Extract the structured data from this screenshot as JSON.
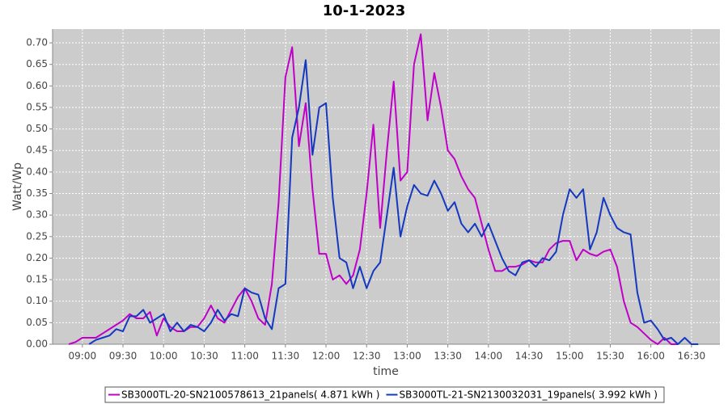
{
  "chart_data": {
    "type": "line",
    "title": "10-1-2023",
    "x_label": "time",
    "y_label": "Watt/Wp",
    "x": [
      "08:50",
      "08:55",
      "09:00",
      "09:05",
      "09:10",
      "09:15",
      "09:20",
      "09:25",
      "09:30",
      "09:35",
      "09:40",
      "09:45",
      "09:50",
      "09:55",
      "10:00",
      "10:05",
      "10:10",
      "10:15",
      "10:20",
      "10:25",
      "10:30",
      "10:35",
      "10:40",
      "10:45",
      "10:50",
      "10:55",
      "11:00",
      "11:05",
      "11:10",
      "11:15",
      "11:20",
      "11:25",
      "11:30",
      "11:35",
      "11:40",
      "11:45",
      "11:50",
      "11:55",
      "12:00",
      "12:05",
      "12:10",
      "12:15",
      "12:20",
      "12:25",
      "12:30",
      "12:35",
      "12:40",
      "12:45",
      "12:50",
      "12:55",
      "13:00",
      "13:05",
      "13:10",
      "13:15",
      "13:20",
      "13:25",
      "13:30",
      "13:35",
      "13:40",
      "13:45",
      "13:50",
      "13:55",
      "14:00",
      "14:05",
      "14:10",
      "14:15",
      "14:20",
      "14:25",
      "14:30",
      "14:35",
      "14:40",
      "14:45",
      "14:50",
      "14:55",
      "15:00",
      "15:05",
      "15:10",
      "15:15",
      "15:20",
      "15:25",
      "15:30",
      "15:35",
      "15:40",
      "15:45",
      "15:50",
      "15:55",
      "16:00",
      "16:05",
      "16:10",
      "16:15",
      "16:20",
      "16:25",
      "16:30",
      "16:35"
    ],
    "series": [
      {
        "name": "SB3000TL-20-SN2100578613_21panels( 4.871 kWh )",
        "color": "#c000c8",
        "values": [
          0,
          0.005,
          0.015,
          0.015,
          0.015,
          0.025,
          0.035,
          0.045,
          0.055,
          0.07,
          0.06,
          0.06,
          0.075,
          0.02,
          0.06,
          0.04,
          0.03,
          0.03,
          0.04,
          0.04,
          0.06,
          0.09,
          0.06,
          0.05,
          0.08,
          0.11,
          0.13,
          0.1,
          0.06,
          0.045,
          0.14,
          0.33,
          0.62,
          0.69,
          0.46,
          0.56,
          0.36,
          0.21,
          0.21,
          0.15,
          0.16,
          0.14,
          0.16,
          0.22,
          0.35,
          0.51,
          0.27,
          0.45,
          0.61,
          0.38,
          0.4,
          0.65,
          0.72,
          0.52,
          0.63,
          0.55,
          0.45,
          0.43,
          0.39,
          0.36,
          0.34,
          0.28,
          0.22,
          0.17,
          0.17,
          0.18,
          0.18,
          0.185,
          0.195,
          0.19,
          0.19,
          0.22,
          0.235,
          0.24,
          0.24,
          0.195,
          0.22,
          0.21,
          0.205,
          0.215,
          0.22,
          0.18,
          0.1,
          0.05,
          0.04,
          0.025,
          0.01,
          0,
          0.015,
          0,
          0,
          null,
          null,
          null
        ]
      },
      {
        "name": "SB3000TL-21-SN2130032031_19panels( 3.992 kWh )",
        "color": "#1438c0",
        "values": [
          null,
          null,
          null,
          0,
          0.01,
          0.015,
          0.02,
          0.035,
          0.03,
          0.065,
          0.065,
          0.08,
          0.05,
          0.06,
          0.07,
          0.03,
          0.05,
          0.03,
          0.045,
          0.04,
          0.03,
          0.05,
          0.08,
          0.055,
          0.07,
          0.065,
          0.13,
          0.12,
          0.115,
          0.06,
          0.035,
          0.13,
          0.14,
          0.48,
          0.55,
          0.66,
          0.44,
          0.55,
          0.56,
          0.34,
          0.2,
          0.19,
          0.13,
          0.18,
          0.13,
          0.17,
          0.19,
          0.3,
          0.41,
          0.25,
          0.32,
          0.37,
          0.35,
          0.345,
          0.38,
          0.35,
          0.31,
          0.33,
          0.28,
          0.26,
          0.28,
          0.25,
          0.28,
          0.24,
          0.2,
          0.17,
          0.16,
          0.19,
          0.195,
          0.18,
          0.2,
          0.195,
          0.215,
          0.3,
          0.36,
          0.34,
          0.36,
          0.22,
          0.26,
          0.34,
          0.3,
          0.27,
          0.26,
          0.255,
          0.12,
          0.05,
          0.055,
          0.035,
          0.01,
          0.015,
          0,
          0.015,
          0,
          0
        ]
      }
    ],
    "xlim": [
      "08:38",
      "16:51"
    ],
    "xticks": [
      "09:00",
      "09:30",
      "10:00",
      "10:30",
      "11:00",
      "11:30",
      "12:00",
      "12:30",
      "13:00",
      "13:30",
      "14:00",
      "14:30",
      "15:00",
      "15:30",
      "16:00",
      "16:30"
    ],
    "ylim": [
      0,
      0.732
    ],
    "yticks": [
      {
        "value": 0,
        "label": "0.00"
      },
      {
        "value": 0.05,
        "label": "0.05"
      },
      {
        "value": 0.1,
        "label": "0.10"
      },
      {
        "value": 0.15,
        "label": "0.15"
      },
      {
        "value": 0.2,
        "label": "0.20"
      },
      {
        "value": 0.25,
        "label": "0.25"
      },
      {
        "value": 0.3,
        "label": "0.30"
      },
      {
        "value": 0.35,
        "label": "0.35"
      },
      {
        "value": 0.4,
        "label": "0.40"
      },
      {
        "value": 0.45,
        "label": "0.45"
      },
      {
        "value": 0.5,
        "label": "0.50"
      },
      {
        "value": 0.55,
        "label": "0.55"
      },
      {
        "value": 0.6,
        "label": "0.60"
      },
      {
        "value": 0.65,
        "label": "0.65"
      },
      {
        "value": 0.7,
        "label": "0.70"
      }
    ],
    "grid": true,
    "legend": "bottom"
  }
}
